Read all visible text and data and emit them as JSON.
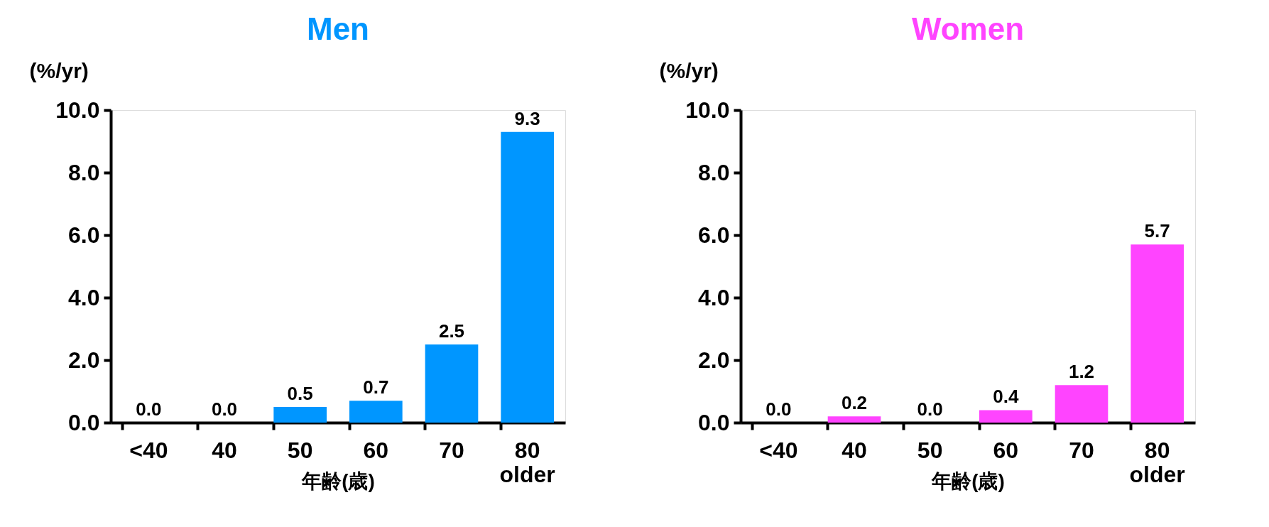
{
  "chart_data": [
    {
      "type": "bar",
      "title": "Men",
      "ylabel": "(%/yr)",
      "xlabel": "年齢(歳)",
      "categories": [
        "<40",
        "40",
        "50",
        "60",
        "70",
        "80\nolder"
      ],
      "series": [
        {
          "color": "#0096ff",
          "values": [
            0.0,
            0.0,
            0.5,
            0.7,
            2.5,
            9.3
          ]
        }
      ],
      "value_labels": [
        "0.0",
        "0.0",
        "0.5",
        "0.7",
        "2.5",
        "9.3"
      ],
      "ylim": [
        0,
        10
      ],
      "yticks": [
        {
          "value": 0,
          "label": "0.0"
        },
        {
          "value": 2,
          "label": "2.0"
        },
        {
          "value": 4,
          "label": "4.0"
        },
        {
          "value": 6,
          "label": "6.0"
        },
        {
          "value": 8,
          "label": "8.0"
        },
        {
          "value": 10,
          "label": "10.0"
        }
      ],
      "grid": false
    },
    {
      "type": "bar",
      "title": "Women",
      "ylabel": "(%/yr)",
      "xlabel": "年齢(歳)",
      "categories": [
        "<40",
        "40",
        "50",
        "60",
        "70",
        "80\nolder"
      ],
      "series": [
        {
          "color": "#ff44ff",
          "values": [
            0.0,
            0.2,
            0.0,
            0.4,
            1.2,
            5.7
          ]
        }
      ],
      "value_labels": [
        "0.0",
        "0.2",
        "0.0",
        "0.4",
        "1.2",
        "5.7"
      ],
      "ylim": [
        0,
        10
      ],
      "yticks": [
        {
          "value": 0,
          "label": "0.0"
        },
        {
          "value": 2,
          "label": "2.0"
        },
        {
          "value": 4,
          "label": "4.0"
        },
        {
          "value": 6,
          "label": "6.0"
        },
        {
          "value": 8,
          "label": "8.0"
        },
        {
          "value": 10,
          "label": "10.0"
        }
      ],
      "grid": false
    }
  ]
}
